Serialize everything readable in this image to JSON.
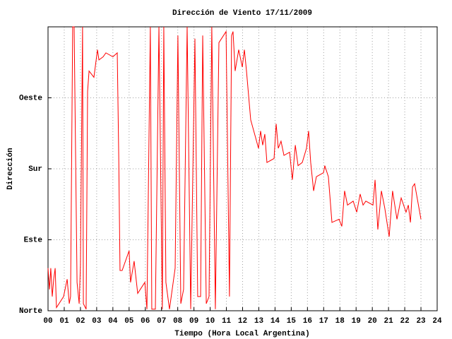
{
  "chart_data": {
    "type": "line",
    "title": "Dirección de Viento 17/11/2009",
    "x_label": "Tiempo (Hora Local Argentina)",
    "y_label": "Dirección",
    "color": "#ff0000",
    "grid": true,
    "xlim": [
      0,
      24
    ],
    "ylim": [
      0,
      360
    ],
    "xticks": [
      {
        "value": 0,
        "label": "00"
      },
      {
        "value": 1,
        "label": "01"
      },
      {
        "value": 2,
        "label": "02"
      },
      {
        "value": 3,
        "label": "03"
      },
      {
        "value": 4,
        "label": "04"
      },
      {
        "value": 5,
        "label": "05"
      },
      {
        "value": 6,
        "label": "06"
      },
      {
        "value": 7,
        "label": "07"
      },
      {
        "value": 8,
        "label": "08"
      },
      {
        "value": 9,
        "label": "09"
      },
      10,
      11,
      12,
      13,
      14,
      15,
      16,
      17,
      18,
      19,
      20,
      21,
      22,
      23,
      24
    ],
    "yticks": [
      {
        "value": 0,
        "label": "Norte"
      },
      {
        "value": 90,
        "label": "Este"
      },
      {
        "value": 180,
        "label": "Sur"
      },
      {
        "value": 270,
        "label": "Oeste"
      }
    ],
    "x": [
      0,
      0.09,
      0.17,
      0.26,
      0.35,
      0.44,
      0.52,
      0.96,
      1.18,
      1.31,
      1.39,
      1.52,
      1.61,
      1.79,
      1.92,
      2.0,
      2.13,
      2.18,
      2.35,
      2.44,
      2.53,
      2.83,
      3.05,
      3.14,
      3.4,
      3.57,
      4.0,
      4.27,
      4.36,
      4.44,
      4.57,
      5.0,
      5.09,
      5.31,
      5.53,
      5.97,
      6.1,
      6.31,
      6.4,
      6.62,
      6.84,
      7.05,
      7.14,
      7.27,
      7.49,
      7.84,
      8.01,
      8.19,
      8.36,
      8.58,
      8.8,
      9.06,
      9.23,
      9.41,
      9.54,
      9.76,
      9.93,
      10.1,
      10.32,
      10.54,
      10.98,
      11.19,
      11.32,
      11.41,
      11.54,
      11.76,
      11.98,
      12.11,
      12.24,
      12.5,
      12.81,
      12.98,
      13.11,
      13.24,
      13.37,
      13.5,
      13.94,
      14.07,
      14.2,
      14.37,
      14.55,
      14.9,
      15.07,
      15.25,
      15.42,
      15.68,
      15.94,
      16.07,
      16.2,
      16.38,
      16.55,
      16.99,
      17.07,
      17.29,
      17.51,
      17.95,
      18.12,
      18.29,
      18.47,
      18.82,
      19.04,
      19.25,
      19.43,
      19.6,
      20.04,
      20.17,
      20.34,
      20.56,
      20.77,
      21.04,
      21.25,
      21.52,
      21.78,
      22.08,
      22.22,
      22.35,
      22.48,
      22.61,
      23.0
    ],
    "values": [
      54,
      27,
      54,
      18,
      40,
      54,
      4,
      18,
      40,
      9,
      18,
      360,
      360,
      36,
      9,
      58,
      360,
      9,
      2,
      278,
      304,
      296,
      331,
      318,
      322,
      327,
      322,
      327,
      197,
      51,
      51,
      76,
      36,
      63,
      22,
      36,
      2,
      360,
      2,
      2,
      360,
      2,
      360,
      36,
      2,
      54,
      349,
      9,
      27,
      360,
      2,
      345,
      18,
      18,
      349,
      9,
      18,
      360,
      2,
      340,
      354,
      18,
      349,
      354,
      304,
      331,
      309,
      331,
      304,
      242,
      219,
      206,
      228,
      210,
      224,
      188,
      193,
      237,
      206,
      215,
      197,
      201,
      166,
      210,
      184,
      188,
      206,
      228,
      188,
      152,
      170,
      175,
      184,
      170,
      112,
      116,
      107,
      152,
      134,
      139,
      125,
      148,
      134,
      139,
      134,
      166,
      103,
      152,
      130,
      94,
      152,
      116,
      143,
      125,
      134,
      112,
      157,
      161,
      116
    ]
  }
}
